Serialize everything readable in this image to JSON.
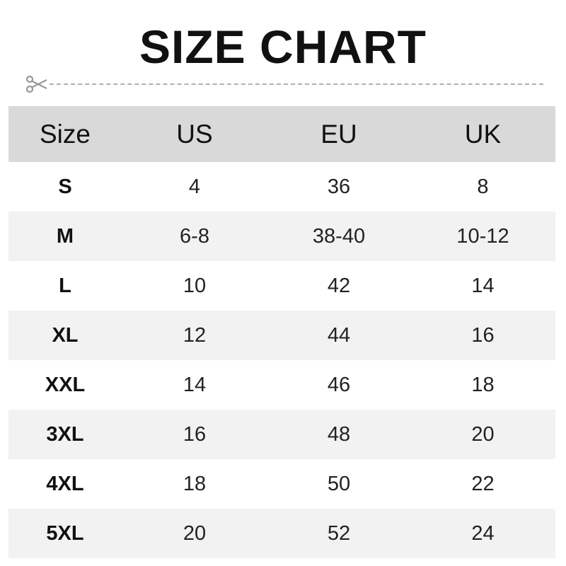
{
  "title": "SIZE CHART",
  "icons": {
    "cut": "scissors-icon"
  },
  "colors": {
    "header_bg": "#d9d9d9",
    "alt_row_bg": "#f2f2f2",
    "dash": "#b0b0b0"
  },
  "table": {
    "headers": [
      "Size",
      "US",
      "EU",
      "UK"
    ],
    "rows": [
      [
        "S",
        "4",
        "36",
        "8"
      ],
      [
        "M",
        "6-8",
        "38-40",
        "10-12"
      ],
      [
        "L",
        "10",
        "42",
        "14"
      ],
      [
        "XL",
        "12",
        "44",
        "16"
      ],
      [
        "XXL",
        "14",
        "46",
        "18"
      ],
      [
        "3XL",
        "16",
        "48",
        "20"
      ],
      [
        "4XL",
        "18",
        "50",
        "22"
      ],
      [
        "5XL",
        "20",
        "52",
        "24"
      ]
    ]
  }
}
